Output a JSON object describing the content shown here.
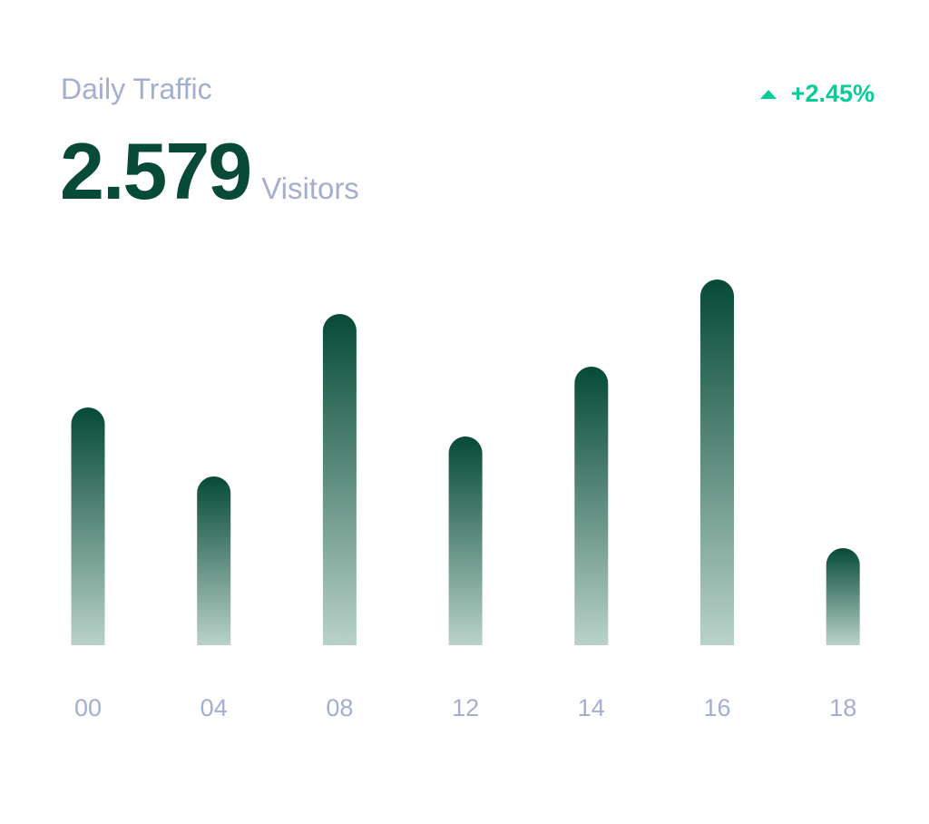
{
  "header": {
    "title": "Daily Traffic",
    "change": "+2.45%",
    "change_icon": "triangle-up-icon",
    "value": "2.579",
    "unit": "Visitors"
  },
  "colors": {
    "bar_top": "#064a37",
    "bar_bottom": "#b9d2c9",
    "label": "#a3aed0",
    "positive": "#05cd99"
  },
  "chart_data": {
    "type": "bar",
    "title": "Daily Traffic",
    "categories": [
      "00",
      "04",
      "08",
      "12",
      "14",
      "16",
      "18"
    ],
    "values": [
      262,
      186,
      365,
      230,
      307,
      403,
      107
    ],
    "xlabel": "",
    "ylabel": "",
    "ylim": [
      0,
      403
    ],
    "grid": false,
    "legend": "none"
  }
}
